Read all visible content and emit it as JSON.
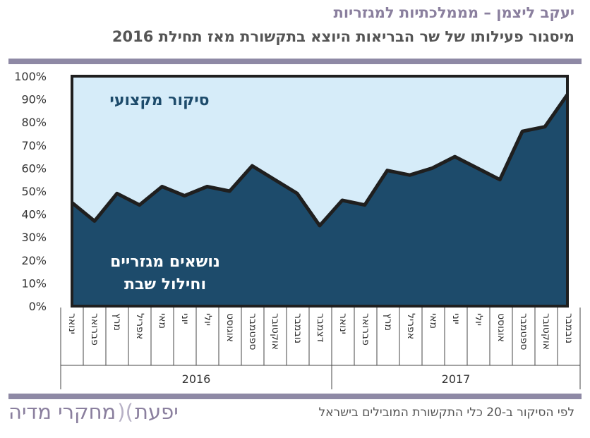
{
  "header": {
    "title": "יעקב ליצמן – מממלכתיות למגזריות",
    "subtitle": "מיסגור פעילותו של שר הבריאות היוצא בתקשורת מאז תחילת 2016"
  },
  "footer": {
    "note": "לפי הסיקור ב-20 כלי התקשורת המובילים בישראל",
    "logo_left": "יפעת",
    "logo_right": "מחקרי מדיה",
    "logo_mark": ")("
  },
  "colors": {
    "upper_fill": "#d6ecf9",
    "lower_fill": "#1d4b6b",
    "line": "#1f1f1f",
    "upper_text": "#1d4b6b",
    "lower_text": "#ffffff",
    "rule": "#8e89a5"
  },
  "chart_data": {
    "type": "area",
    "title": "",
    "xlabel": "",
    "ylabel": "",
    "ylim": [
      0,
      100
    ],
    "y_unit": "%",
    "y_ticks": [
      "0%",
      "10%",
      "20%",
      "30%",
      "40%",
      "50%",
      "60%",
      "70%",
      "80%",
      "90%",
      "100%"
    ],
    "grid": false,
    "categories": [
      "ינואר",
      "פברואר",
      "מרץ",
      "אפריל",
      "מאי",
      "יוני",
      "יולי",
      "אוגוסט",
      "ספטמבר",
      "אוקטובר",
      "נובמבר",
      "דצמבר",
      "ינואר",
      "פברואר",
      "מרץ",
      "אפריל",
      "מאי",
      "יוני",
      "יולי",
      "אוגוסט",
      "ספטמבר",
      "אוקטובר",
      "נובמבר"
    ],
    "year_groups": [
      {
        "label": "2016",
        "count": 12
      },
      {
        "label": "2017",
        "count": 11
      }
    ],
    "series": [
      {
        "name": "נושאים מגזריים וחילול שבת",
        "label_lines": [
          "נושאים מגזריים",
          "וחילול שבת"
        ],
        "values": [
          45,
          37,
          49,
          44,
          52,
          48,
          52,
          50,
          61,
          55,
          49,
          35,
          46,
          44,
          59,
          57,
          60,
          65,
          60,
          55,
          76,
          78,
          92
        ]
      },
      {
        "name": "סיקור מקצועי",
        "label_lines": [
          "סיקור מקצועי"
        ],
        "values": [
          55,
          63,
          51,
          56,
          48,
          52,
          48,
          50,
          39,
          45,
          51,
          65,
          54,
          56,
          41,
          43,
          40,
          35,
          40,
          45,
          24,
          22,
          8
        ]
      }
    ]
  }
}
